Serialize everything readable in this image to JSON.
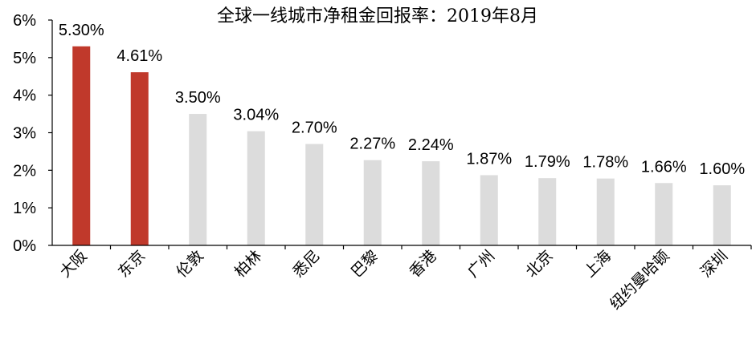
{
  "chart_data": {
    "type": "bar",
    "title": "全球一线城市净租金回报率：2019年8月",
    "xlabel": "",
    "ylabel": "",
    "ylim": [
      0,
      6
    ],
    "yticks": [
      "0%",
      "1%",
      "2%",
      "3%",
      "4%",
      "5%",
      "6%"
    ],
    "categories": [
      "大阪",
      "东京",
      "伦敦",
      "柏林",
      "悉尼",
      "巴黎",
      "香港",
      "广州",
      "北京",
      "上海",
      "纽约曼哈顿",
      "深圳"
    ],
    "values": [
      5.3,
      4.61,
      3.5,
      3.04,
      2.7,
      2.27,
      2.24,
      1.87,
      1.79,
      1.78,
      1.66,
      1.6
    ],
    "data_labels": [
      "5.30%",
      "4.61%",
      "3.50%",
      "3.04%",
      "2.70%",
      "2.27%",
      "2.24%",
      "1.87%",
      "1.79%",
      "1.78%",
      "1.66%",
      "1.60%"
    ],
    "highlight_count": 2,
    "colors": {
      "highlight": "#C0392B",
      "normal": "#DCDCDC",
      "axis": "#000000"
    },
    "grid": false,
    "legend": "none"
  }
}
